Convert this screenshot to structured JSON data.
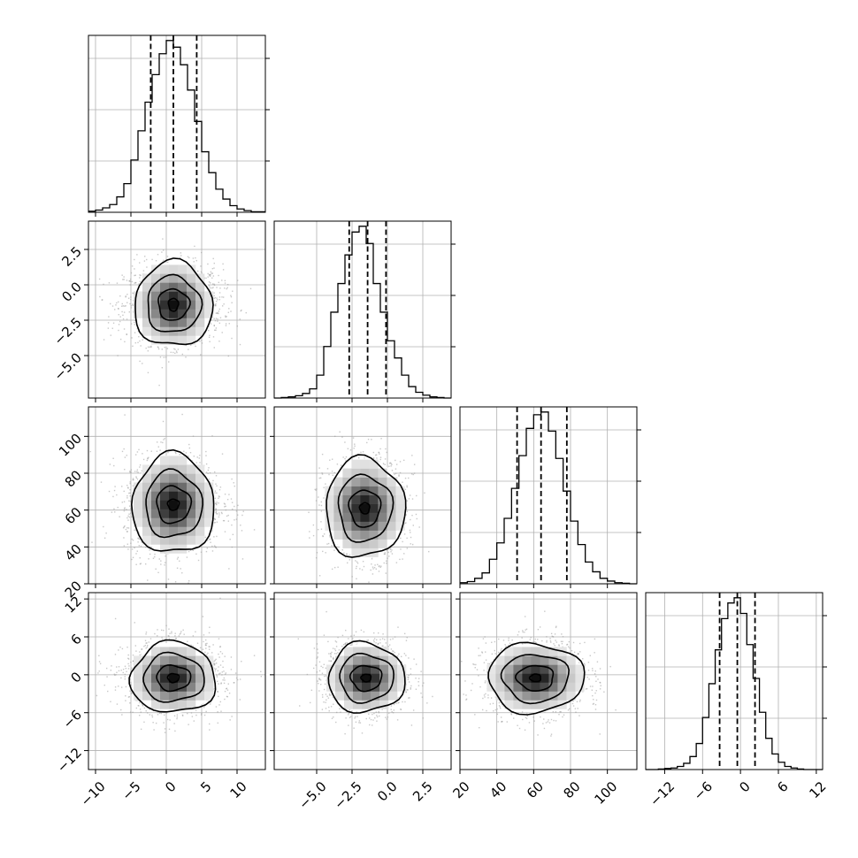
{
  "chart_data": {
    "type": "corner",
    "title": "",
    "grid": true,
    "parameters": [
      {
        "index": 0,
        "mean": 1.0,
        "sd": 3.3,
        "range": [
          -11,
          14
        ],
        "ticks": [
          -10,
          -5,
          0,
          5,
          10
        ],
        "tick_labels": [
          "−10",
          "−5",
          "0",
          "5",
          "10"
        ],
        "quantiles": [
          -2.2,
          1.0,
          4.3
        ],
        "histogram": {
          "bin_edges": [
            -11,
            -10,
            -9,
            -8,
            -7,
            -6,
            -5,
            -4,
            -3,
            -2,
            -1,
            0,
            1,
            2,
            3,
            4,
            5,
            6,
            7,
            8,
            9,
            10,
            11,
            12,
            13,
            14
          ],
          "counts": [
            2,
            4,
            8,
            14,
            28,
            52,
            95,
            148,
            200,
            250,
            288,
            312,
            300,
            268,
            222,
            165,
            110,
            72,
            42,
            24,
            12,
            6,
            3,
            1,
            1
          ]
        }
      },
      {
        "index": 1,
        "mean": -1.4,
        "sd": 1.35,
        "range": [
          -8.0,
          4.5
        ],
        "ticks": [
          -5.0,
          -2.5,
          0.0,
          2.5
        ],
        "tick_labels": [
          "−5.0",
          "−2.5",
          "0.0",
          "2.5"
        ],
        "quantiles": [
          -2.7,
          -1.4,
          -0.1
        ],
        "histogram": {
          "bin_edges": [
            -8.0,
            -7.5,
            -7.0,
            -6.5,
            -6.0,
            -5.5,
            -5.0,
            -4.5,
            -4.0,
            -3.5,
            -3.0,
            -2.5,
            -2.0,
            -1.5,
            -1.0,
            -0.5,
            0.0,
            0.5,
            1.0,
            1.5,
            2.0,
            2.5,
            3.0,
            3.5,
            4.0,
            4.5
          ],
          "counts": [
            0,
            1,
            2,
            4,
            8,
            16,
            40,
            90,
            150,
            200,
            250,
            290,
            300,
            270,
            200,
            150,
            100,
            70,
            40,
            20,
            10,
            5,
            2,
            1,
            0
          ]
        }
      },
      {
        "index": 2,
        "mean": 64.0,
        "sd": 13.0,
        "range": [
          20,
          116
        ],
        "ticks": [
          20,
          40,
          60,
          80,
          100
        ],
        "tick_labels": [
          "20",
          "40",
          "60",
          "80",
          "100"
        ],
        "quantiles": [
          51.0,
          64.0,
          78.0
        ],
        "histogram": {
          "bin_edges": [
            20,
            24,
            28,
            32,
            36,
            40,
            44,
            48,
            52,
            56,
            60,
            64,
            68,
            72,
            76,
            80,
            84,
            88,
            92,
            96,
            100,
            104,
            108,
            112,
            116
          ],
          "counts": [
            2,
            4,
            10,
            20,
            45,
            75,
            120,
            175,
            235,
            285,
            310,
            315,
            280,
            230,
            170,
            115,
            72,
            40,
            22,
            10,
            5,
            2,
            1,
            0
          ]
        }
      },
      {
        "index": 3,
        "mean": -0.5,
        "sd": 2.8,
        "range": [
          -15,
          13
        ],
        "ticks": [
          -12,
          -6,
          0,
          6,
          12
        ],
        "tick_labels": [
          "−12",
          "−6",
          "0",
          "6",
          "12"
        ],
        "quantiles": [
          -3.3,
          -0.5,
          2.3
        ],
        "histogram": {
          "bin_edges": [
            -15,
            -14,
            -13,
            -12,
            -11,
            -10,
            -9,
            -8,
            -7,
            -6,
            -5,
            -4,
            -3,
            -2,
            -1,
            0,
            1,
            2,
            3,
            4,
            5,
            6,
            7,
            8,
            9,
            10,
            11,
            12,
            13
          ],
          "counts": [
            0,
            0,
            1,
            2,
            3,
            6,
            12,
            25,
            50,
            100,
            165,
            230,
            290,
            320,
            330,
            300,
            240,
            175,
            110,
            60,
            30,
            14,
            6,
            3,
            1,
            0,
            0,
            0
          ]
        }
      }
    ],
    "pairs": [
      {
        "x": 0,
        "y": 1,
        "center": [
          1.0,
          -1.4
        ],
        "contour_halfwidths": [
          [
            5.5,
            3.0
          ],
          [
            3.8,
            2.0
          ],
          [
            2.2,
            1.1
          ],
          [
            0.7,
            0.45
          ]
        ]
      },
      {
        "x": 0,
        "y": 2,
        "center": [
          1.0,
          63.0
        ],
        "contour_halfwidths": [
          [
            5.8,
            27
          ],
          [
            4.0,
            18
          ],
          [
            2.4,
            10
          ],
          [
            0.8,
            3
          ]
        ]
      },
      {
        "x": 1,
        "y": 2,
        "center": [
          -1.6,
          61.0
        ],
        "contour_halfwidths": [
          [
            2.8,
            27
          ],
          [
            1.9,
            18
          ],
          [
            1.1,
            10
          ],
          [
            0.35,
            3
          ]
        ]
      },
      {
        "x": 0,
        "y": 3,
        "center": [
          1.0,
          -0.5
        ],
        "contour_halfwidths": [
          [
            6.0,
            5.6
          ],
          [
            4.3,
            3.8
          ],
          [
            2.4,
            2.0
          ],
          [
            0.8,
            0.7
          ]
        ]
      },
      {
        "x": 1,
        "y": 3,
        "center": [
          -1.5,
          -0.5
        ],
        "contour_halfwidths": [
          [
            2.7,
            5.5
          ],
          [
            1.9,
            3.8
          ],
          [
            1.1,
            2.0
          ],
          [
            0.35,
            0.6
          ]
        ]
      },
      {
        "x": 2,
        "y": 3,
        "center": [
          61.0,
          -0.5
        ],
        "contour_halfwidths": [
          [
            26,
            5.5
          ],
          [
            18,
            3.8
          ],
          [
            10,
            2.0
          ],
          [
            3,
            0.6
          ]
        ]
      }
    ]
  }
}
